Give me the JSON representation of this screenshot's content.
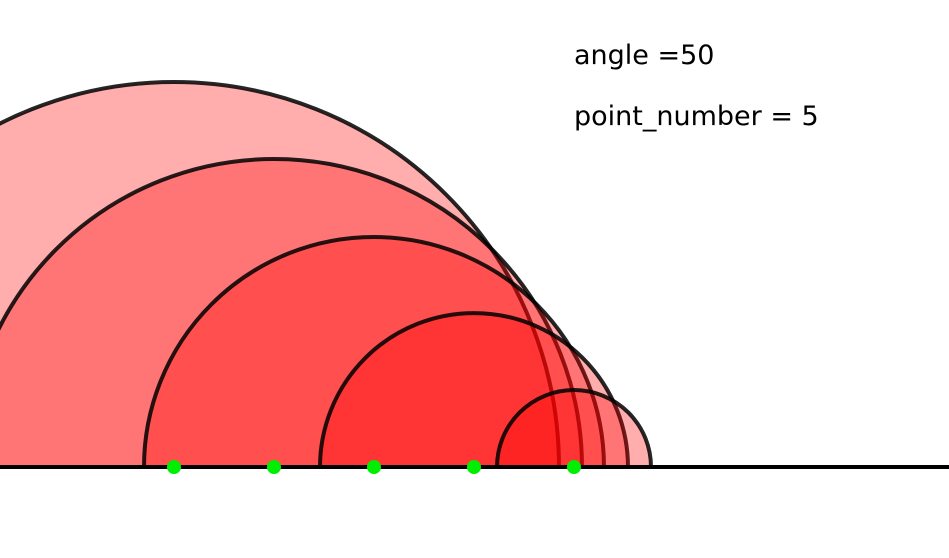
{
  "labels": {
    "angle": "angle =50",
    "point_number": "point_number = 5"
  },
  "parameters": {
    "angle": 50,
    "point_number": 5
  },
  "colors": {
    "background": "#ffffff",
    "stroke": "#000000",
    "fill": "#ff0000",
    "point": "#00ee00"
  },
  "semicircles": [
    {
      "fill_opacity": 0.32
    },
    {
      "fill_opacity": 0.32
    },
    {
      "fill_opacity": 0.32
    },
    {
      "fill_opacity": 0.32
    },
    {
      "fill_opacity": 0.32
    }
  ]
}
